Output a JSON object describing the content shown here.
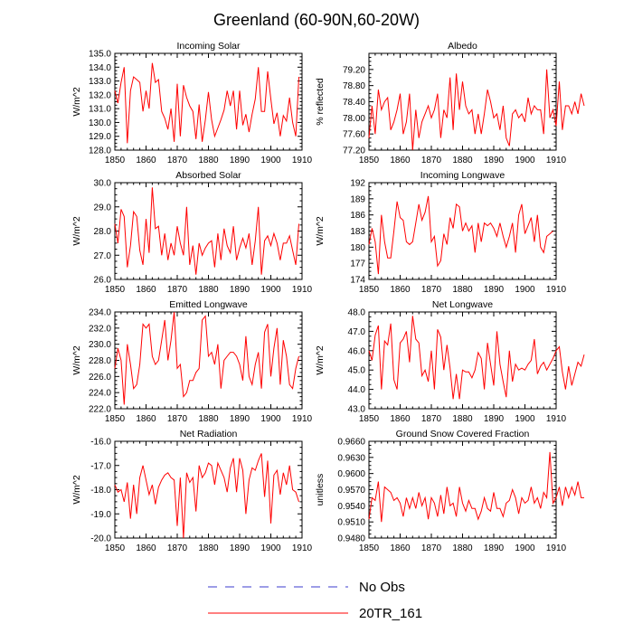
{
  "figure": {
    "title": "Greenland (60-90N,60-20W)",
    "colors": {
      "series": "#ff0000",
      "obs": "#3b3bcc",
      "axis": "#000000"
    }
  },
  "legend": [
    {
      "label": "No Obs",
      "style": "dashed",
      "color": "#3b3bcc"
    },
    {
      "label": "20TR_161",
      "style": "solid",
      "color": "#ff0000"
    }
  ],
  "chart_data": [
    {
      "type": "line",
      "title": "Incoming Solar",
      "ylabel": "W/m^2",
      "xlim": [
        1850,
        1910
      ],
      "ylim": [
        128.0,
        135.0
      ],
      "xticks": [
        1850,
        1860,
        1870,
        1880,
        1890,
        1900,
        1910
      ],
      "yticks": [
        "128.0",
        "129.0",
        "130.0",
        "131.0",
        "132.0",
        "133.0",
        "134.0",
        "135.0"
      ],
      "x_start": 1850,
      "series": [
        {
          "name": "20TR_161",
          "values": [
            132.3,
            131.4,
            132.9,
            134.0,
            128.5,
            132.3,
            133.3,
            133.1,
            132.9,
            130.8,
            132.3,
            131.0,
            134.3,
            132.9,
            133.1,
            130.8,
            130.3,
            129.5,
            131.0,
            128.6,
            132.8,
            129.0,
            132.7,
            131.8,
            131.2,
            130.8,
            128.8,
            131.3,
            128.6,
            130.2,
            132.2,
            130.2,
            129.0,
            129.6,
            130.2,
            130.9,
            132.3,
            131.2,
            132.3,
            129.5,
            132.3,
            129.8,
            130.6,
            129.3,
            130.6,
            131.7,
            134.0,
            130.8,
            130.8,
            133.7,
            131.7,
            129.9,
            130.7,
            129.0,
            130.5,
            130.1,
            131.8,
            130.0,
            129.0,
            133.3
          ]
        }
      ]
    },
    {
      "type": "line",
      "title": "Albedo",
      "ylabel": "% reflected",
      "xlim": [
        1850,
        1910
      ],
      "ylim": [
        77.2,
        79.6
      ],
      "xticks": [
        1850,
        1860,
        1870,
        1880,
        1890,
        1900,
        1910
      ],
      "yticks": [
        "77.20",
        "77.60",
        "78.00",
        "78.40",
        "78.80",
        "79.20"
      ],
      "x_start": 1850,
      "series": [
        {
          "name": "20TR_161",
          "values": [
            77.5,
            78.3,
            77.6,
            78.7,
            78.2,
            78.4,
            78.5,
            77.7,
            77.9,
            78.2,
            78.6,
            77.6,
            77.9,
            78.6,
            77.2,
            78.2,
            77.5,
            77.9,
            78.1,
            78.3,
            78.0,
            78.2,
            78.6,
            77.5,
            78.2,
            78.0,
            79.0,
            77.7,
            79.1,
            78.2,
            78.9,
            78.3,
            78.1,
            78.2,
            77.6,
            78.1,
            77.6,
            78.1,
            78.7,
            78.4,
            78.0,
            78.1,
            77.7,
            78.3,
            77.5,
            77.3,
            78.1,
            78.2,
            78.0,
            78.1,
            77.9,
            78.5,
            78.1,
            78.3,
            78.2,
            78.2,
            77.6,
            79.2,
            78.0,
            78.2,
            77.8,
            78.9,
            77.7,
            78.3,
            78.3,
            78.1,
            78.4,
            78.1,
            78.6,
            78.3
          ]
        }
      ]
    },
    {
      "type": "line",
      "title": "Absorbed Solar",
      "ylabel": "W/m^2",
      "xlim": [
        1850,
        1910
      ],
      "ylim": [
        26.0,
        30.0
      ],
      "xticks": [
        1850,
        1860,
        1870,
        1880,
        1890,
        1900,
        1910
      ],
      "yticks": [
        "26.0",
        "27.0",
        "28.0",
        "29.0",
        "30.0"
      ],
      "x_start": 1850,
      "series": [
        {
          "name": "20TR_161",
          "values": [
            28.3,
            27.5,
            28.9,
            28.6,
            26.5,
            27.4,
            28.8,
            28.6,
            27.2,
            26.6,
            28.5,
            27.1,
            29.8,
            28.1,
            28.2,
            27.0,
            27.9,
            26.8,
            27.5,
            27.0,
            28.2,
            27.5,
            27.0,
            29.0,
            26.6,
            27.4,
            26.2,
            27.5,
            27.0,
            27.3,
            27.5,
            27.6,
            26.5,
            27.9,
            26.8,
            28.1,
            27.4,
            27.1,
            28.2,
            26.8,
            27.3,
            27.7,
            27.3,
            27.9,
            26.6,
            27.6,
            29.0,
            26.2,
            27.6,
            27.8,
            27.4,
            27.9,
            27.5,
            26.8,
            27.5,
            27.5,
            27.8,
            27.2,
            26.6,
            28.3
          ]
        }
      ]
    },
    {
      "type": "line",
      "title": "Incoming Longwave",
      "ylabel": "W/m^2",
      "xlim": [
        1850,
        1910
      ],
      "ylim": [
        174,
        192
      ],
      "xticks": [
        1850,
        1860,
        1870,
        1880,
        1890,
        1900,
        1910
      ],
      "yticks": [
        "174",
        "177",
        "180",
        "183",
        "186",
        "189",
        "192"
      ],
      "x_start": 1850,
      "series": [
        {
          "name": "20TR_161",
          "values": [
            180.5,
            183.5,
            181.0,
            175.0,
            186.0,
            181.0,
            178.0,
            178.0,
            183.0,
            188.5,
            185.5,
            185.0,
            181.0,
            180.5,
            181.0,
            184.5,
            188.0,
            185.0,
            186.5,
            189.5,
            181.0,
            182.0,
            176.5,
            177.5,
            182.5,
            180.5,
            185.5,
            183.5,
            188.0,
            187.5,
            183.0,
            184.5,
            183.0,
            184.0,
            179.0,
            184.5,
            181.0,
            184.5,
            184.0,
            184.5,
            183.5,
            182.0,
            184.5,
            182.0,
            180.0,
            182.0,
            184.5,
            179.0,
            186.0,
            188.0,
            182.5,
            184.0,
            185.5,
            181.0,
            186.0,
            180.0,
            179.0,
            182.0,
            182.5,
            183.0
          ]
        }
      ]
    },
    {
      "type": "line",
      "title": "Emitted Longwave",
      "ylabel": "W/m^2",
      "xlim": [
        1850,
        1910
      ],
      "ylim": [
        222.0,
        234.0
      ],
      "xticks": [
        1850,
        1860,
        1870,
        1880,
        1890,
        1900,
        1910
      ],
      "yticks": [
        "222.0",
        "224.0",
        "226.0",
        "228.0",
        "230.0",
        "232.0",
        "234.0"
      ],
      "x_start": 1850,
      "series": [
        {
          "name": "20TR_161",
          "values": [
            227.0,
            229.5,
            228.0,
            222.5,
            230.0,
            227.5,
            224.5,
            225.0,
            227.5,
            232.5,
            232.0,
            232.5,
            228.5,
            227.5,
            228.0,
            230.5,
            233.0,
            228.0,
            230.5,
            234.0,
            227.0,
            227.5,
            223.5,
            224.0,
            225.5,
            225.5,
            226.5,
            227.0,
            233.0,
            233.5,
            228.5,
            229.0,
            227.5,
            230.0,
            224.5,
            228.0,
            228.5,
            229.0,
            229.0,
            228.5,
            227.5,
            225.5,
            231.0,
            226.0,
            225.0,
            227.5,
            229.0,
            224.5,
            231.5,
            232.5,
            226.0,
            229.5,
            232.0,
            225.0,
            230.5,
            228.5,
            225.0,
            224.5,
            227.0,
            228.5
          ]
        }
      ]
    },
    {
      "type": "line",
      "title": "Net Longwave",
      "ylabel": "W/m^2",
      "xlim": [
        1850,
        1910
      ],
      "ylim": [
        43.0,
        48.0
      ],
      "xticks": [
        1850,
        1860,
        1870,
        1880,
        1890,
        1900,
        1910
      ],
      "yticks": [
        "43.0",
        "44.0",
        "45.0",
        "46.0",
        "47.0",
        "48.0"
      ],
      "x_start": 1850,
      "series": [
        {
          "name": "20TR_161",
          "values": [
            46.0,
            45.5,
            46.8,
            47.3,
            44.0,
            46.5,
            46.3,
            47.4,
            44.5,
            44.0,
            46.4,
            46.6,
            47.0,
            45.4,
            47.8,
            46.6,
            46.4,
            44.7,
            45.0,
            44.4,
            46.0,
            44.0,
            47.1,
            46.7,
            45.0,
            46.3,
            45.1,
            43.5,
            44.8,
            43.5,
            45.0,
            44.9,
            44.9,
            44.6,
            45.0,
            45.9,
            45.6,
            44.0,
            46.4,
            45.3,
            44.2,
            47.0,
            45.3,
            44.4,
            43.6,
            46.0,
            44.4,
            45.3,
            45.0,
            45.1,
            45.0,
            45.3,
            45.5,
            46.6,
            44.8,
            45.2,
            45.4,
            45.0,
            45.3,
            45.6,
            46.0,
            46.2,
            44.9,
            44.0,
            45.2,
            44.2,
            44.8,
            45.4,
            45.2,
            45.8
          ]
        }
      ]
    },
    {
      "type": "line",
      "title": "Net Radiation",
      "ylabel": "W/m^2",
      "xlim": [
        1850,
        1910
      ],
      "ylim": [
        -20.0,
        -16.0
      ],
      "xticks": [
        1850,
        1860,
        1870,
        1880,
        1890,
        1900,
        1910
      ],
      "yticks": [
        "-20.0",
        "-19.0",
        "-18.0",
        "-17.0",
        "-16.0"
      ],
      "x_start": 1850,
      "series": [
        {
          "name": "20TR_161",
          "values": [
            -17.8,
            -18.1,
            -18.0,
            -18.5,
            -17.7,
            -19.2,
            -17.8,
            -19.0,
            -17.5,
            -17.0,
            -17.6,
            -18.2,
            -17.8,
            -18.6,
            -17.9,
            -17.6,
            -17.4,
            -17.3,
            -17.5,
            -17.6,
            -19.5,
            -17.5,
            -20.0,
            -17.3,
            -17.7,
            -17.5,
            -18.9,
            -17.0,
            -17.5,
            -17.3,
            -16.9,
            -17.0,
            -17.8,
            -16.9,
            -17.2,
            -17.5,
            -18.1,
            -17.1,
            -16.7,
            -18.1,
            -16.7,
            -17.2,
            -19.0,
            -17.6,
            -17.1,
            -17.2,
            -16.8,
            -16.5,
            -18.3,
            -16.8,
            -19.4,
            -17.4,
            -17.2,
            -18.2,
            -17.3,
            -17.8,
            -17.0,
            -18.0,
            -18.1,
            -18.5
          ]
        }
      ]
    },
    {
      "type": "line",
      "title": "Ground Snow Covered Fraction",
      "ylabel": "unitless",
      "xlim": [
        1850,
        1910
      ],
      "ylim": [
        0.948,
        0.966
      ],
      "xticks": [
        1850,
        1860,
        1870,
        1880,
        1890,
        1900,
        1910
      ],
      "yticks": [
        "0.9480",
        "0.9510",
        "0.9540",
        "0.9570",
        "0.9600",
        "0.9630",
        "0.9660"
      ],
      "x_start": 1850,
      "series": [
        {
          "name": "20TR_161",
          "values": [
            0.9515,
            0.9555,
            0.955,
            0.9585,
            0.951,
            0.9575,
            0.957,
            0.9565,
            0.955,
            0.9555,
            0.9545,
            0.952,
            0.9555,
            0.9535,
            0.9555,
            0.9535,
            0.9565,
            0.954,
            0.9555,
            0.9515,
            0.9555,
            0.9545,
            0.952,
            0.956,
            0.9525,
            0.9575,
            0.954,
            0.9545,
            0.952,
            0.9575,
            0.9545,
            0.953,
            0.955,
            0.9535,
            0.9535,
            0.9515,
            0.953,
            0.9555,
            0.9535,
            0.953,
            0.9565,
            0.9535,
            0.9535,
            0.952,
            0.9545,
            0.955,
            0.957,
            0.9555,
            0.9525,
            0.9555,
            0.9545,
            0.955,
            0.9575,
            0.9545,
            0.9555,
            0.9535,
            0.9565,
            0.9555,
            0.964,
            0.9545,
            0.9555,
            0.9575,
            0.954,
            0.9575,
            0.9555,
            0.9575,
            0.956,
            0.9585,
            0.9555,
            0.9555
          ]
        }
      ]
    }
  ]
}
